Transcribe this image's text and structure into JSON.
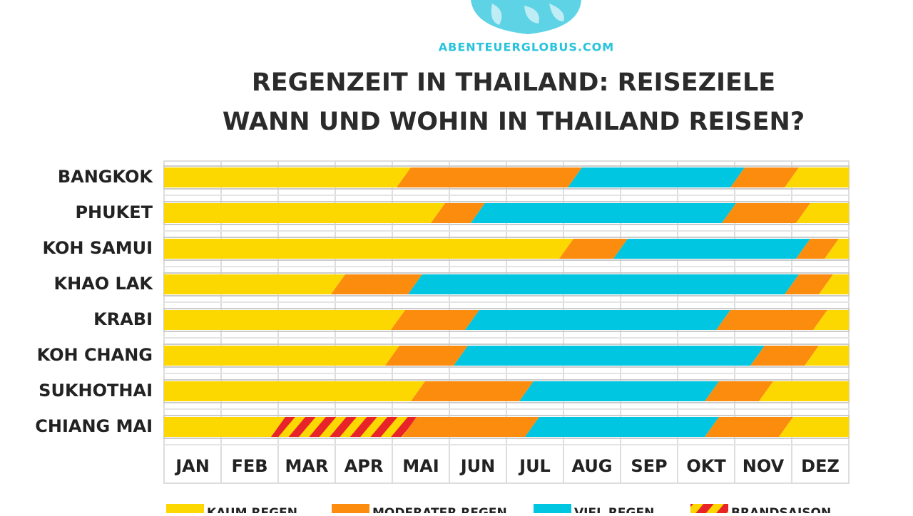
{
  "site": "ABENTEUERGLOBUS.COM",
  "chart_data": {
    "type": "timeline",
    "title": "REGENZEIT IN THAILAND: REISEZIELE",
    "subtitle": "WANN UND WOHIN IN THAILAND REISEN?",
    "months": [
      "JAN",
      "FEB",
      "MAR",
      "APR",
      "MAI",
      "JUN",
      "JUL",
      "AUG",
      "SEP",
      "OKT",
      "NOV",
      "DEZ"
    ],
    "legend": [
      {
        "name": "KAUM REGEN",
        "color": "#fdd800"
      },
      {
        "name": "MODERATER REGEN",
        "color": "#fb8c0e"
      },
      {
        "name": "VIEL REGEN",
        "color": "#00c6e2"
      },
      {
        "name": "BRANDSAISON",
        "color": "#e8232a"
      }
    ],
    "rows": [
      {
        "name": "BANGKOK",
        "segments": [
          {
            "kind": 0,
            "start": 0,
            "end": 4.2
          },
          {
            "kind": 1,
            "start": 4.2,
            "end": 7.2
          },
          {
            "kind": 2,
            "start": 7.2,
            "end": 10.05
          },
          {
            "kind": 1,
            "start": 10.05,
            "end": 11
          },
          {
            "kind": 0,
            "start": 11,
            "end": 12
          }
        ]
      },
      {
        "name": "PHUKET",
        "segments": [
          {
            "kind": 0,
            "start": 0,
            "end": 4.8
          },
          {
            "kind": 1,
            "start": 4.8,
            "end": 5.5
          },
          {
            "kind": 2,
            "start": 5.5,
            "end": 9.9
          },
          {
            "kind": 1,
            "start": 9.9,
            "end": 11.2
          },
          {
            "kind": 0,
            "start": 11.2,
            "end": 12
          }
        ]
      },
      {
        "name": "KOH SAMUI",
        "segments": [
          {
            "kind": 0,
            "start": 0,
            "end": 7.05
          },
          {
            "kind": 1,
            "start": 7.05,
            "end": 8
          },
          {
            "kind": 2,
            "start": 8,
            "end": 11.2
          },
          {
            "kind": 1,
            "start": 11.2,
            "end": 11.7
          },
          {
            "kind": 0,
            "start": 11.7,
            "end": 12
          }
        ]
      },
      {
        "name": "KHAO LAK",
        "segments": [
          {
            "kind": 0,
            "start": 0,
            "end": 3.05
          },
          {
            "kind": 1,
            "start": 3.05,
            "end": 4.4
          },
          {
            "kind": 2,
            "start": 4.4,
            "end": 11
          },
          {
            "kind": 1,
            "start": 11,
            "end": 11.6
          },
          {
            "kind": 0,
            "start": 11.6,
            "end": 12
          }
        ]
      },
      {
        "name": "KRABI",
        "segments": [
          {
            "kind": 0,
            "start": 0,
            "end": 4.1
          },
          {
            "kind": 1,
            "start": 4.1,
            "end": 5.4
          },
          {
            "kind": 2,
            "start": 5.4,
            "end": 9.8
          },
          {
            "kind": 1,
            "start": 9.8,
            "end": 11.5
          },
          {
            "kind": 0,
            "start": 11.5,
            "end": 12
          }
        ]
      },
      {
        "name": "KOH CHANG",
        "segments": [
          {
            "kind": 0,
            "start": 0,
            "end": 4
          },
          {
            "kind": 1,
            "start": 4,
            "end": 5.2
          },
          {
            "kind": 2,
            "start": 5.2,
            "end": 10.4
          },
          {
            "kind": 1,
            "start": 10.4,
            "end": 11.35
          },
          {
            "kind": 0,
            "start": 11.35,
            "end": 12
          }
        ]
      },
      {
        "name": "SUKHOTHAI",
        "segments": [
          {
            "kind": 0,
            "start": 0,
            "end": 4.45
          },
          {
            "kind": 1,
            "start": 4.45,
            "end": 6.35
          },
          {
            "kind": 2,
            "start": 6.35,
            "end": 9.6
          },
          {
            "kind": 1,
            "start": 9.6,
            "end": 10.55
          },
          {
            "kind": 0,
            "start": 10.55,
            "end": 12
          }
        ]
      },
      {
        "name": "CHIANG MAI",
        "segments": [
          {
            "kind": 0,
            "start": 0,
            "end": 2
          },
          {
            "kind": 3,
            "start": 2,
            "end": 4.3
          },
          {
            "kind": 1,
            "start": 4.3,
            "end": 6.45
          },
          {
            "kind": 2,
            "start": 6.45,
            "end": 9.6
          },
          {
            "kind": 1,
            "start": 9.6,
            "end": 10.9
          },
          {
            "kind": 0,
            "start": 10.9,
            "end": 12
          }
        ]
      }
    ]
  }
}
